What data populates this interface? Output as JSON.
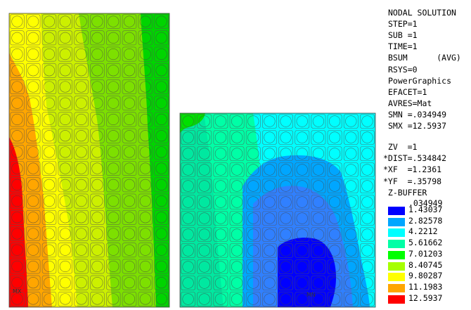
{
  "header": {
    "lines": [
      "NODAL SOLUTION",
      "STEP=1",
      "SUB =1",
      "TIME=1",
      "BSUM      (AVG)",
      "RSYS=0",
      "PowerGraphics",
      "EFACET=1",
      "AVRES=Mat",
      "SMN =.034949",
      "SMX =12.5937"
    ]
  },
  "view": {
    "lines": [
      " ZV  =1",
      "*DIST=.534842",
      "*XF  =1.2361",
      "*YF  =.35798",
      " Z-BUFFER"
    ]
  },
  "legend": {
    "min_label": ".034949",
    "levels": [
      {
        "label": "1.43037",
        "color": "#0000ff"
      },
      {
        "label": "2.82578",
        "color": "#00a6ff"
      },
      {
        "label": "4.2212",
        "color": "#00ffff"
      },
      {
        "label": "5.61662",
        "color": "#00ffa6"
      },
      {
        "label": "7.01203",
        "color": "#00ff00"
      },
      {
        "label": "8.40745",
        "color": "#a6ff00"
      },
      {
        "label": "9.80287",
        "color": "#ffff00"
      },
      {
        "label": "11.1983",
        "color": "#ffa600"
      },
      {
        "label": "12.5937",
        "color": "#ff0000"
      }
    ]
  },
  "markers": {
    "max": "MX",
    "min": "MN"
  }
}
